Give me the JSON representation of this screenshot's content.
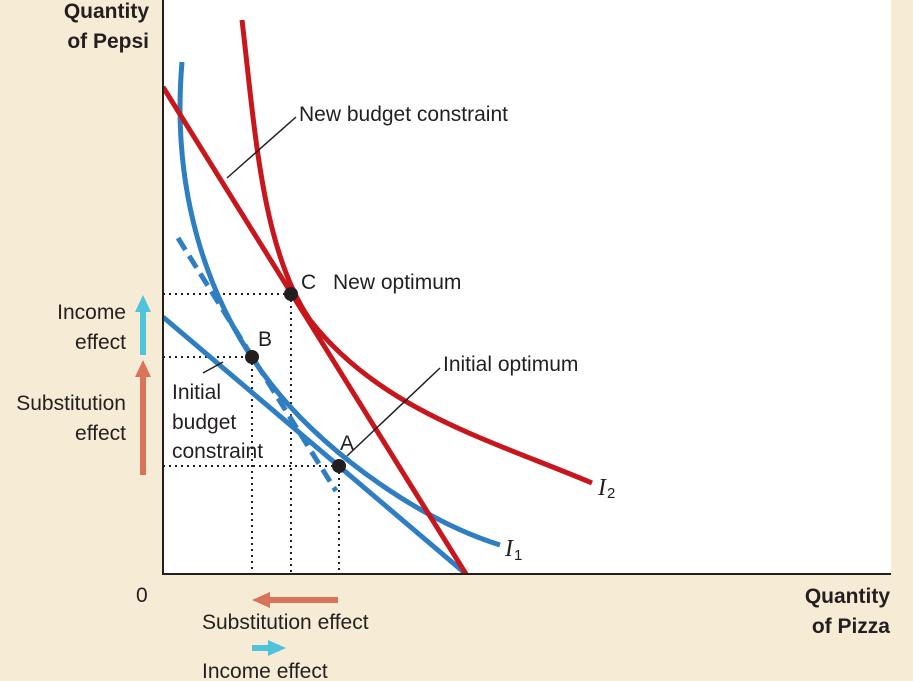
{
  "y_axis_title": [
    "Quantity",
    "of Pepsi"
  ],
  "x_axis_title": [
    "Quantity",
    "of Pizza"
  ],
  "origin_label": "0",
  "labels": {
    "new_budget": "New budget constraint",
    "new_optimum": "New optimum",
    "initial_optimum": "Initial optimum",
    "initial_budget": [
      "Initial",
      "budget",
      "constraint"
    ],
    "point_a": "A",
    "point_b": "B",
    "point_c": "C",
    "i1": "I",
    "i1_sub": "1",
    "i2": "I",
    "i2_sub": "2"
  },
  "left_effects": {
    "income": [
      "Income",
      "effect"
    ],
    "substitution": [
      "Substitution",
      "effect"
    ]
  },
  "bottom_effects": {
    "substitution": "Substitution effect",
    "income": "Income effect"
  },
  "colors": {
    "background": "#f6ecd6",
    "plot_bg": "#ffffff",
    "blue": "#2f7ec1",
    "red": "#c8161d",
    "substitution_arrow": "#d9735a",
    "income_arrow": "#4fc3dc"
  }
}
